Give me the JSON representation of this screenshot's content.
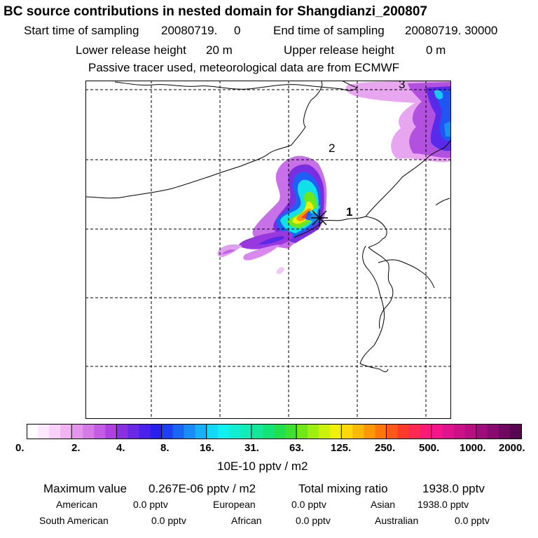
{
  "title": "BC  source contributions in nested domain for Shangdianzi_200807",
  "header": {
    "start_label": "Start time of sampling",
    "start_value": "20080719.     0",
    "end_label": "End time of sampling",
    "end_value": "20080719. 30000",
    "lower_label": "Lower release height",
    "lower_value": "20 m",
    "upper_label": "Upper release height",
    "upper_value": "0 m",
    "tracer_note": "Passive tracer used, meteorological data are from ECMWF"
  },
  "map": {
    "region_labels": [
      "1",
      "2",
      "3"
    ],
    "station_marker": "star-cross-icon"
  },
  "colorbar": {
    "tick_labels": [
      "0.",
      "2.",
      "4.",
      "8.",
      "16.",
      "31.",
      "63.",
      "125.",
      "250.",
      "500.",
      "1000.",
      "2000."
    ],
    "unit": "10E-10 pptv / m2",
    "colors": [
      "#ffffff",
      "#fde8fd",
      "#f8d0f8",
      "#f0b4f0",
      "#e496ec",
      "#d67ae8",
      "#c45ce4",
      "#b040e0",
      "#8a30e0",
      "#6a28e6",
      "#4a22ea",
      "#2a20ee",
      "#1e40f2",
      "#1a66f4",
      "#1a8cf6",
      "#18b0f8",
      "#14d8f8",
      "#10f0f0",
      "#12eed4",
      "#12ecb8",
      "#14e898",
      "#14e478",
      "#20e050",
      "#40e030",
      "#70e818",
      "#a0ee10",
      "#ccf20c",
      "#f0f00a",
      "#fcd808",
      "#fcb808",
      "#fc9808",
      "#fc7808",
      "#fc5818",
      "#fc3a2a",
      "#fc2a50",
      "#fc1a78",
      "#f4148c",
      "#e0128c",
      "#cc1088",
      "#b80e84",
      "#a00c7c",
      "#880a70",
      "#700862",
      "#580652"
    ]
  },
  "stats": {
    "max_label": "Maximum value",
    "max_value": "0.267E-06 pptv / m2",
    "total_label": "Total mixing ratio",
    "total_value": "1938.0 pptv",
    "regions": [
      {
        "name": "American",
        "value": "0.0 pptv"
      },
      {
        "name": "European",
        "value": "0.0 pptv"
      },
      {
        "name": "Asian",
        "value": "1938.0 pptv"
      },
      {
        "name": "South American",
        "value": "0.0 pptv"
      },
      {
        "name": "African",
        "value": "0.0 pptv"
      },
      {
        "name": "Australian",
        "value": "0.0 pptv"
      }
    ]
  }
}
